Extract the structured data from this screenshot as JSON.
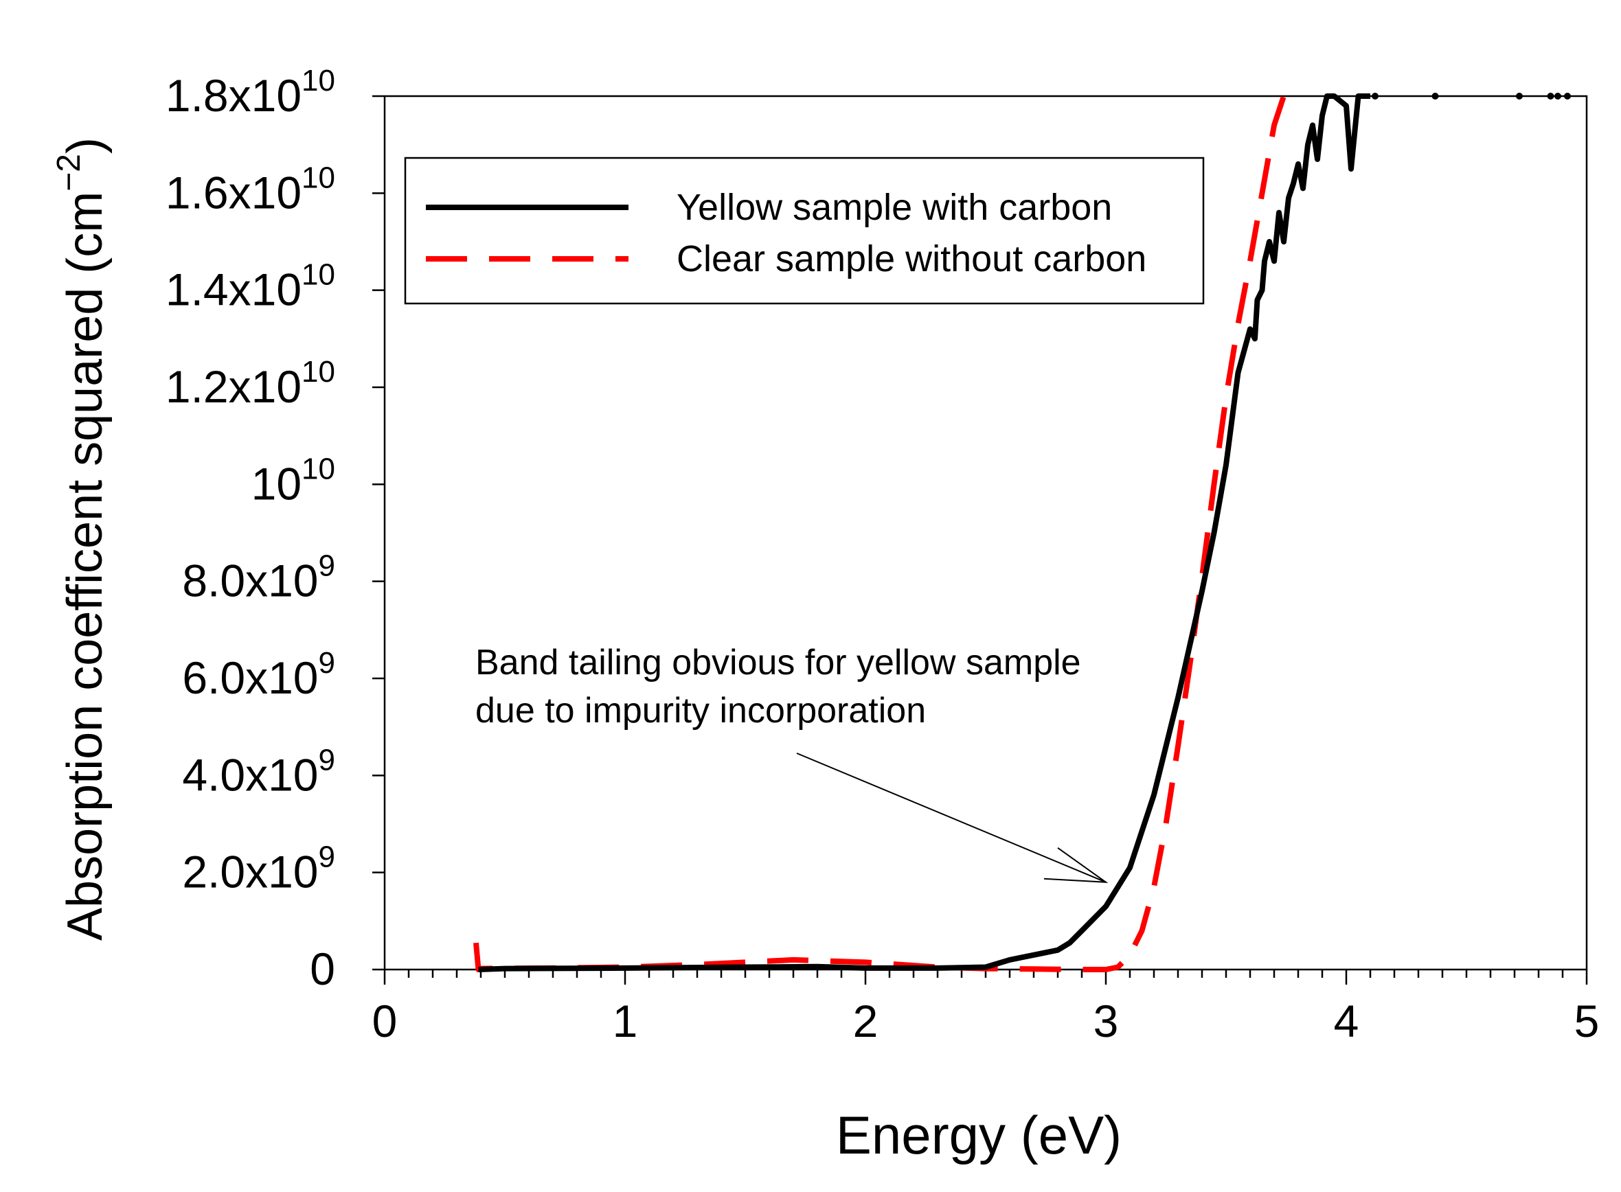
{
  "chart_data": {
    "type": "line",
    "title": "",
    "xlabel": "Energy (eV)",
    "ylabel": "Absorption coefficent squared (cm",
    "ylabel_sup": "−2",
    "ylabel_close": ")",
    "xlim": [
      0,
      5
    ],
    "ylim": [
      0,
      18000000000
    ],
    "grid": false,
    "legend_position": "top-left",
    "xticks": [
      {
        "value": 0,
        "label": "0"
      },
      {
        "value": 1,
        "label": "1"
      },
      {
        "value": 2,
        "label": "2"
      },
      {
        "value": 3,
        "label": "3"
      },
      {
        "value": 4,
        "label": "4"
      },
      {
        "value": 5,
        "label": "5"
      }
    ],
    "yticks": [
      {
        "value": 0,
        "base": "0",
        "exp": ""
      },
      {
        "value": 2000000000,
        "base": "2.0x10",
        "exp": "9"
      },
      {
        "value": 4000000000,
        "base": "4.0x10",
        "exp": "9"
      },
      {
        "value": 6000000000,
        "base": "6.0x10",
        "exp": "9"
      },
      {
        "value": 8000000000,
        "base": "8.0x10",
        "exp": "9"
      },
      {
        "value": 10000000000,
        "base": "10",
        "exp": "10"
      },
      {
        "value": 12000000000,
        "base": "1.2x10",
        "exp": "10"
      },
      {
        "value": 14000000000,
        "base": "1.4x10",
        "exp": "10"
      },
      {
        "value": 16000000000,
        "base": "1.6x10",
        "exp": "10"
      },
      {
        "value": 18000000000,
        "base": "1.8x10",
        "exp": "10"
      }
    ],
    "series": [
      {
        "name": "Yellow sample with carbon",
        "color": "#000000",
        "style": "solid",
        "x": [
          0.39,
          0.5,
          1.0,
          1.5,
          1.8,
          2.0,
          2.3,
          2.5,
          2.6,
          2.7,
          2.8,
          2.85,
          2.9,
          3.0,
          3.1,
          3.2,
          3.3,
          3.4,
          3.45,
          3.5,
          3.55,
          3.6,
          3.62,
          3.63,
          3.65,
          3.66,
          3.68,
          3.7,
          3.72,
          3.74,
          3.76,
          3.78,
          3.8,
          3.82,
          3.84,
          3.86,
          3.88,
          3.9,
          3.92,
          3.95,
          4.0,
          4.02,
          4.05,
          4.1
        ],
        "y": [
          0.0,
          20000000.0,
          30000000.0,
          50000000.0,
          60000000.0,
          30000000.0,
          30000000.0,
          50000000.0,
          200000000.0,
          300000000.0,
          400000000.0,
          550000000.0,
          800000000.0,
          1300000000.0,
          2100000000.0,
          3600000000.0,
          5600000000.0,
          7800000000.0,
          9000000000.0,
          10400000000.0,
          12300000000.0,
          13200000000.0,
          13000000000.0,
          13800000000.0,
          14000000000.0,
          14600000000.0,
          15000000000.0,
          14600000000.0,
          15600000000.0,
          15000000000.0,
          15900000000.0,
          16200000000.0,
          16600000000.0,
          16100000000.0,
          17000000000.0,
          17400000000.0,
          16700000000.0,
          17600000000.0,
          18000000000.0,
          18000000000.0,
          17800000000.0,
          16500000000.0,
          18000000000.0,
          18000000000.0
        ]
      },
      {
        "name": "Clear sample without carbon",
        "color": "#ff0000",
        "style": "dashed",
        "x": [
          0.38,
          0.39,
          0.4,
          0.7,
          1.0,
          1.3,
          1.5,
          1.7,
          2.0,
          2.3,
          2.5,
          2.7,
          2.9,
          3.0,
          3.05,
          3.1,
          3.15,
          3.2,
          3.25,
          3.3,
          3.35,
          3.4,
          3.45,
          3.5,
          3.55,
          3.6,
          3.65,
          3.7,
          3.74
        ],
        "y": [
          550000000.0,
          0.0,
          20000000.0,
          30000000.0,
          50000000.0,
          100000000.0,
          150000000.0,
          200000000.0,
          150000000.0,
          50000000.0,
          20000000.0,
          10000000.0,
          0.0,
          0.0,
          50000000.0,
          300000000.0,
          800000000.0,
          1700000000.0,
          3000000000.0,
          4600000000.0,
          6300000000.0,
          8100000000.0,
          10000000000.0,
          11800000000.0,
          13300000000.0,
          14600000000.0,
          16000000000.0,
          17400000000.0,
          18000000000.0
        ]
      }
    ],
    "scatter_points": {
      "color": "#000000",
      "x": [
        4.12,
        4.37,
        4.72,
        4.85,
        4.88,
        4.92
      ],
      "y": [
        18000000000,
        18000000000,
        18000000000,
        18000000000,
        18000000000,
        18000000000
      ]
    },
    "annotation": {
      "line1": "Band tailing obvious for yellow sample",
      "line2": "due to impurity incorporation",
      "arrow_target": {
        "x": 3.0,
        "y": 1800000000
      }
    }
  }
}
